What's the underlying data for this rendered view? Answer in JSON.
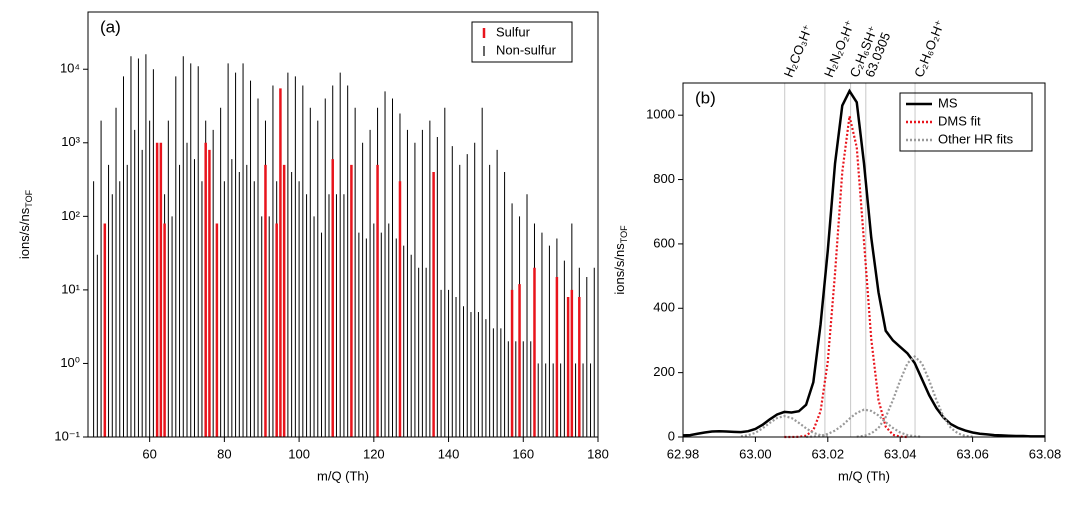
{
  "chart_data": [
    {
      "type": "stick",
      "panel_label": "(a)",
      "x_label": "m/Q (Th)",
      "y_label": "ions/s/ns",
      "y_label_sub": "TOF",
      "log_y": true,
      "xlim": [
        43.5,
        180
      ],
      "ylim": [
        0.1,
        60000
      ],
      "xticks": [
        60,
        80,
        100,
        120,
        140,
        160,
        180
      ],
      "yticks": [
        {
          "value": 0.1,
          "label": "10⁻¹"
        },
        {
          "value": 1,
          "label": "10⁰"
        },
        {
          "value": 10,
          "label": "10¹"
        },
        {
          "value": 100,
          "label": "10²"
        },
        {
          "value": 1000,
          "label": "10³"
        },
        {
          "value": 10000,
          "label": "10⁴"
        }
      ],
      "legend": "upper right",
      "series": [
        {
          "name": "Non-sulfur",
          "color": "#000000",
          "x": [
            45,
            46,
            47,
            48,
            49,
            50,
            51,
            52,
            53,
            54,
            55,
            56,
            57,
            58,
            59,
            60,
            61,
            62,
            63,
            64,
            65,
            66,
            67,
            68,
            69,
            70,
            71,
            72,
            73,
            74,
            75,
            76,
            77,
            78,
            79,
            80,
            81,
            82,
            83,
            84,
            85,
            86,
            87,
            88,
            89,
            90,
            91,
            92,
            93,
            94,
            95,
            96,
            97,
            98,
            99,
            100,
            101,
            102,
            103,
            104,
            105,
            106,
            107,
            108,
            109,
            110,
            111,
            112,
            113,
            114,
            115,
            116,
            117,
            118,
            119,
            120,
            121,
            122,
            123,
            124,
            125,
            126,
            127,
            128,
            129,
            130,
            131,
            132,
            133,
            134,
            135,
            136,
            137,
            138,
            139,
            140,
            141,
            142,
            143,
            144,
            145,
            146,
            147,
            148,
            149,
            150,
            151,
            152,
            153,
            154,
            155,
            156,
            157,
            158,
            159,
            160,
            161,
            162,
            163,
            164,
            165,
            166,
            167,
            168,
            169,
            170,
            171,
            172,
            173,
            174,
            175,
            176,
            177,
            178,
            179
          ],
          "values": [
            300,
            30,
            2000,
            5,
            500,
            200,
            3000,
            300,
            8000,
            500,
            15000,
            1500,
            14000,
            800,
            16000,
            2000,
            10000,
            300,
            100,
            200,
            2000,
            100,
            8000,
            500,
            15000,
            1000,
            12000,
            600,
            11000,
            300,
            2000,
            80,
            1500,
            50,
            3000,
            300,
            12000,
            600,
            9000,
            400,
            12000,
            500,
            7000,
            300,
            4000,
            100,
            2000,
            100,
            6000,
            300,
            4000,
            200,
            9000,
            400,
            8000,
            300,
            6000,
            200,
            3000,
            100,
            2000,
            60,
            4000,
            200,
            6000,
            200,
            9000,
            200,
            6000,
            100,
            3000,
            60,
            1000,
            50,
            1500,
            80,
            3000,
            60,
            5000,
            80,
            4000,
            50,
            2500,
            40,
            1500,
            30,
            1000,
            20,
            1500,
            20,
            2000,
            20,
            1200,
            10,
            3000,
            10,
            900,
            8,
            500,
            6,
            700,
            5,
            1000,
            5,
            3000,
            4,
            500,
            3,
            800,
            3,
            400,
            2,
            150,
            2,
            100,
            2,
            200,
            2,
            80,
            1,
            60,
            1,
            40,
            1,
            50,
            1,
            25,
            1,
            80,
            1,
            20,
            1,
            15,
            1,
            20
          ]
        },
        {
          "name": "Sulfur",
          "color": "#e8141c",
          "x": [
            48,
            62,
            63,
            64,
            75,
            76,
            78,
            91,
            94,
            95,
            96,
            109,
            114,
            121,
            127,
            136,
            157,
            159,
            163,
            169,
            172,
            173,
            175
          ],
          "values": [
            80,
            1000,
            1000,
            80,
            1000,
            800,
            80,
            500,
            80,
            5500,
            500,
            600,
            500,
            500,
            300,
            400,
            10,
            12,
            20,
            15,
            8,
            10,
            8
          ]
        }
      ]
    },
    {
      "type": "line",
      "panel_label": "(b)",
      "x_label": "m/Q (Th)",
      "y_label": "ions/s/ns",
      "y_label_sub": "TOF",
      "log_y": false,
      "xlim": [
        62.98,
        63.08
      ],
      "ylim": [
        0,
        1100
      ],
      "xticks": [
        62.98,
        {
          "value": 63,
          "label": "63.00"
        },
        63.02,
        63.04,
        63.06,
        63.08
      ],
      "yticks": [
        0,
        200,
        400,
        600,
        800,
        1000
      ],
      "legend": "upper right",
      "reference_lines": [
        {
          "label": "H₂CO₃H⁺",
          "x": 63.0081
        },
        {
          "label": "H₂N₂O₂H⁺",
          "x": 63.0192
        },
        {
          "label": "C₂H₆SH⁺",
          "x": 63.0263
        },
        {
          "label": "63.0305",
          "x": 63.0305
        },
        {
          "label": "C₂H₆O₂H⁺",
          "x": 63.0441
        }
      ],
      "series": [
        {
          "name": "MS",
          "color": "#000000",
          "style": "solid",
          "x": [
            62.98,
            62.982,
            62.984,
            62.986,
            62.988,
            62.99,
            62.992,
            62.994,
            62.996,
            62.998,
            63.0,
            63.002,
            63.004,
            63.006,
            63.008,
            63.01,
            63.012,
            63.014,
            63.016,
            63.018,
            63.02,
            63.022,
            63.024,
            63.026,
            63.028,
            63.03,
            63.032,
            63.034,
            63.036,
            63.038,
            63.04,
            63.042,
            63.044,
            63.046,
            63.048,
            63.05,
            63.052,
            63.054,
            63.056,
            63.058,
            63.06,
            63.062,
            63.064,
            63.066,
            63.068,
            63.07,
            63.072,
            63.074,
            63.076,
            63.078,
            63.08
          ],
          "values": [
            5,
            6,
            10,
            14,
            17,
            18,
            17,
            16,
            15,
            18,
            25,
            38,
            55,
            70,
            78,
            76,
            80,
            100,
            170,
            350,
            580,
            850,
            1030,
            1075,
            1040,
            850,
            620,
            450,
            330,
            300,
            280,
            260,
            230,
            180,
            130,
            90,
            60,
            40,
            28,
            20,
            14,
            10,
            8,
            6,
            5,
            4,
            3,
            3,
            2,
            2,
            2
          ]
        },
        {
          "name": "DMS fit",
          "color": "#e8141c",
          "style": "dotted",
          "x": [
            63.008,
            63.01,
            63.012,
            63.014,
            63.016,
            63.018,
            63.02,
            63.022,
            63.024,
            63.026,
            63.028,
            63.03,
            63.032,
            63.034,
            63.036,
            63.038,
            63.04,
            63.042
          ],
          "values": [
            0,
            0.06,
            0.6,
            4,
            21,
            80,
            235,
            509,
            824,
            997,
            900,
            607,
            305,
            115,
            32,
            7,
            1,
            0
          ]
        },
        {
          "name": "Other HR fits",
          "color": "#999999",
          "style": "dotted",
          "curves": [
            {
              "x": [
                62.996,
                62.998,
                63.0,
                63.002,
                63.004,
                63.006,
                63.008,
                63.01,
                63.012,
                63.014,
                63.016,
                63.018,
                63.02
              ],
              "values": [
                1.8,
                5.5,
                13,
                27,
                44,
                59,
                65,
                59,
                44,
                27,
                13,
                5.5,
                1.8
              ]
            },
            {
              "x": [
                63.014,
                63.016,
                63.018,
                63.02,
                63.022,
                63.024,
                63.026,
                63.028,
                63.03,
                63.032,
                63.034,
                63.036,
                63.038,
                63.04,
                63.042,
                63.044,
                63.046
              ],
              "values": [
                0.4,
                1.3,
                3.7,
                9.4,
                20,
                36,
                57,
                75,
                85,
                81,
                67,
                46,
                28,
                14,
                6,
                2.2,
                0.7
              ]
            },
            {
              "x": [
                63.028,
                63.03,
                63.032,
                63.034,
                63.036,
                63.038,
                63.04,
                63.042,
                63.044,
                63.046,
                63.048,
                63.05,
                63.052,
                63.054,
                63.056,
                63.058,
                63.06
              ],
              "values": [
                1,
                3.5,
                11,
                28,
                62,
                115,
                176,
                229,
                250,
                229,
                176,
                115,
                62,
                28,
                11,
                3.5,
                1
              ]
            }
          ]
        }
      ]
    }
  ]
}
